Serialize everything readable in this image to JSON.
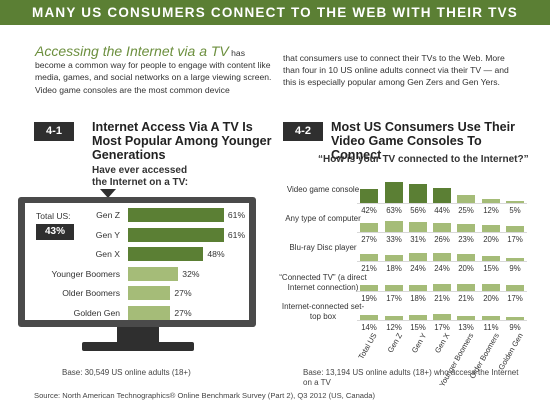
{
  "banner": "MANY US CONSUMERS CONNECT TO THE WEB WITH THEIR TVS",
  "intro": {
    "lead": "Accessing the Internet via a TV",
    "left_rest": "has become a common way for people to engage with content like media, games, and social networks on a large viewing screen. Video game consoles are the most common device",
    "right": "that consumers use to connect their TVs to the Web. More than four in 10 US online adults connect via their TV — and this is especially popular among Gen Zers and Gen Yers."
  },
  "colors": {
    "bar_dark": "#5b7f34",
    "bar_light": "#a5bc78",
    "tv_frame": "#4a4a4a",
    "badge": "#2f2f2f"
  },
  "chart_data": [
    {
      "type": "bar",
      "id": "4-1",
      "title": "Internet Access Via A TV Is Most Popular Among Younger Generations",
      "subtitle": "Have ever accessed the Internet on a TV:",
      "total_label": "Total US:",
      "total_value": "43%",
      "categories": [
        "Gen Z",
        "Gen Y",
        "Gen X",
        "Younger Boomers",
        "Older Boomers",
        "Golden Gen"
      ],
      "values": [
        61,
        61,
        48,
        32,
        27,
        27
      ],
      "value_labels": [
        "61%",
        "61%",
        "48%",
        "32%",
        "27%",
        "27%"
      ],
      "xlim": [
        0,
        70
      ],
      "base": "Base: 30,549 US online adults (18+)"
    },
    {
      "type": "bar",
      "id": "4-2",
      "title": "Most US Consumers Use Their Video Game Consoles To Connect",
      "subtitle": "“How is your TV connected to the Internet?”",
      "columns": [
        "Total US",
        "Gen Z",
        "Gen Y",
        "Gen X",
        "Younger Boomers",
        "Older Boomers",
        "Golden Gen"
      ],
      "rows": [
        {
          "label": "Video game console",
          "values": [
            42,
            63,
            56,
            44,
            25,
            12,
            5
          ],
          "value_labels": [
            "42%",
            "63%",
            "56%",
            "44%",
            "25%",
            "12%",
            "5%"
          ]
        },
        {
          "label": "Any type of computer",
          "values": [
            27,
            33,
            31,
            26,
            23,
            20,
            17
          ],
          "value_labels": [
            "27%",
            "33%",
            "31%",
            "26%",
            "23%",
            "20%",
            "17%"
          ]
        },
        {
          "label": "Blu-ray Disc player",
          "values": [
            21,
            18,
            24,
            24,
            20,
            15,
            9
          ],
          "value_labels": [
            "21%",
            "18%",
            "24%",
            "24%",
            "20%",
            "15%",
            "9%"
          ]
        },
        {
          "label": "“Connected TV” (a direct Internet connection)",
          "values": [
            19,
            17,
            18,
            21,
            21,
            20,
            17
          ],
          "value_labels": [
            "19%",
            "17%",
            "18%",
            "21%",
            "21%",
            "20%",
            "17%"
          ]
        },
        {
          "label": "Internet-connected set-top box",
          "values": [
            14,
            12,
            15,
            17,
            13,
            11,
            9
          ],
          "value_labels": [
            "14%",
            "12%",
            "15%",
            "17%",
            "13%",
            "11%",
            "9%"
          ]
        }
      ],
      "ylim": [
        0,
        65
      ],
      "base": "Base: 13,194 US online adults (18+) who access the Internet on a TV"
    }
  ],
  "source": "Source: North American Technographics® Online Benchmark Survey (Part 2), Q3 2012 (US, Canada)"
}
